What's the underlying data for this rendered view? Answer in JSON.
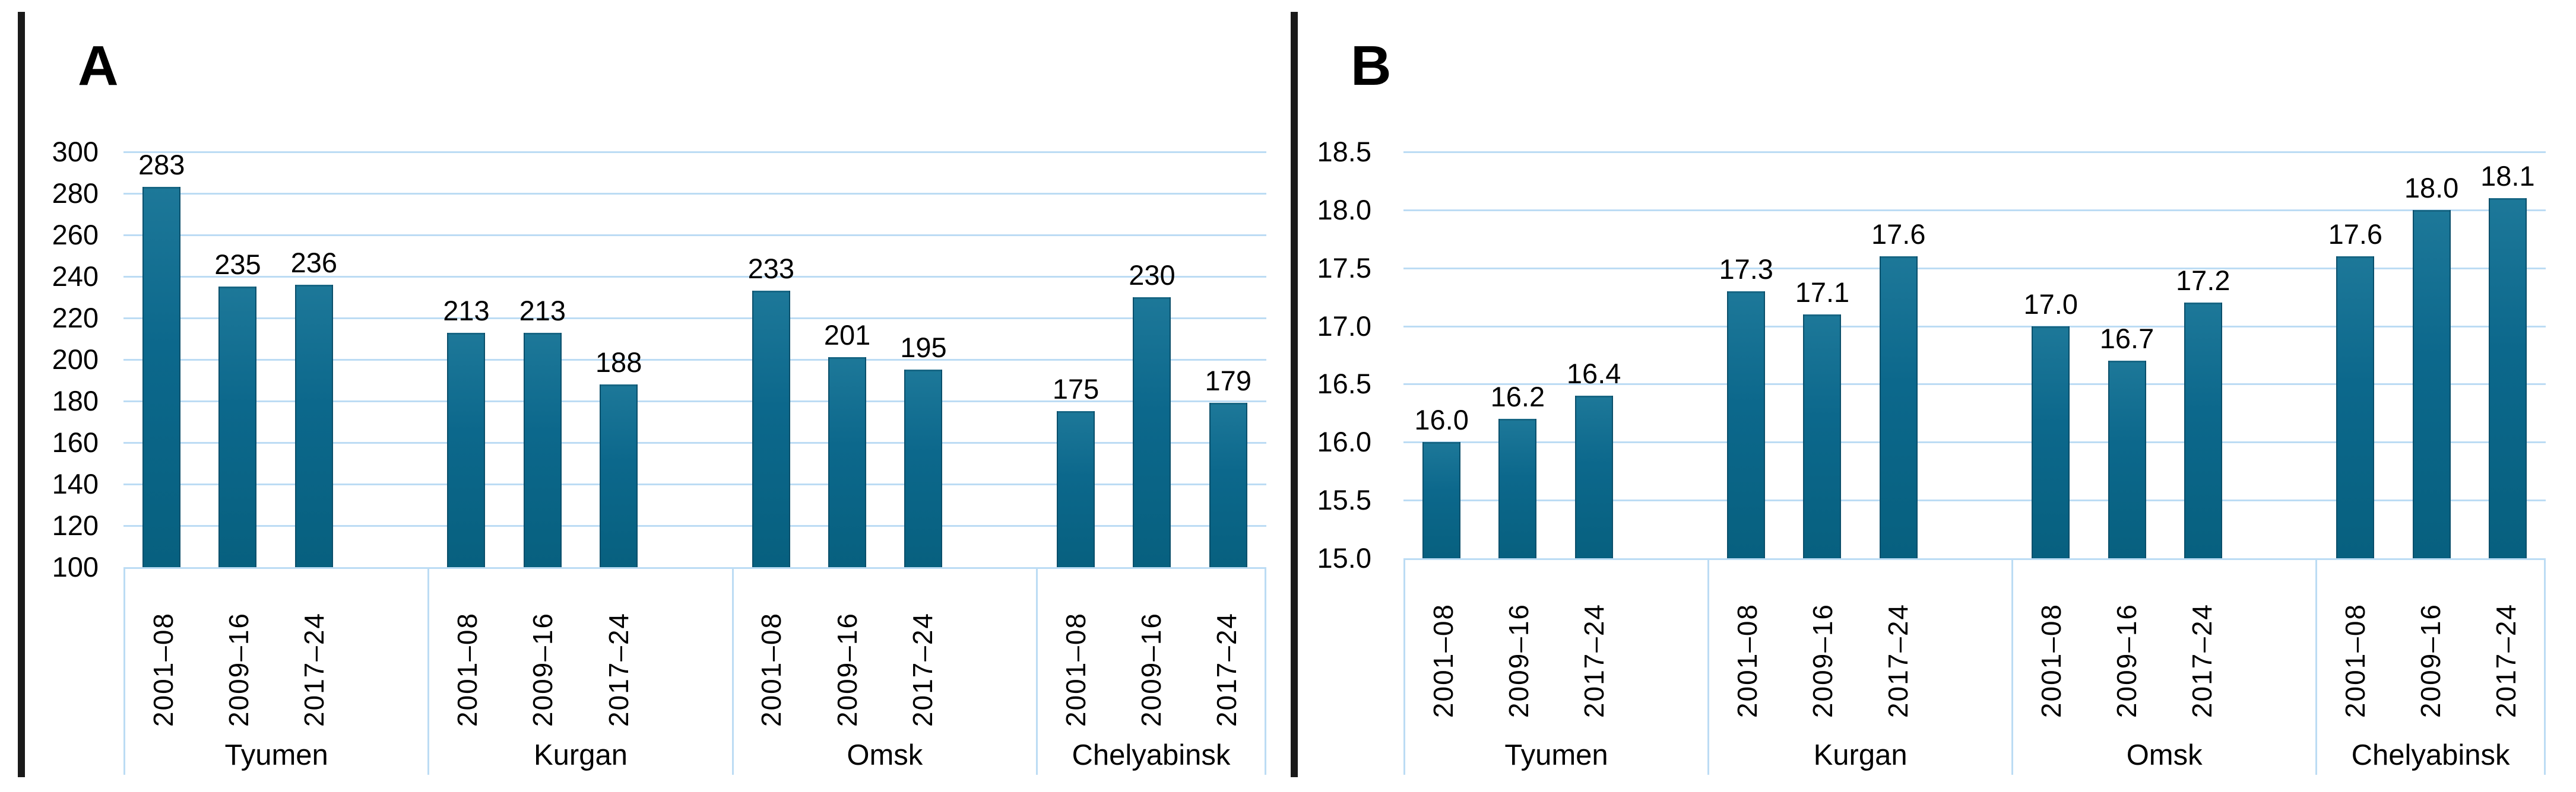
{
  "figure": {
    "background": "#ffffff",
    "panel_border_color": "#1a1a1a",
    "grid_color": "#bcdcf4",
    "bar_color_top": "#1d7899",
    "bar_color_mid": "#0c688c",
    "bar_color_bottom": "#07607f",
    "bar_edge_color": "#0a4f6b",
    "text_color": "#000000"
  },
  "chart_data": [
    {
      "panel_label": "A",
      "type": "bar",
      "title": "",
      "xlabel": "",
      "ylabel": "",
      "ylim": [
        100,
        300
      ],
      "y_tick_step": 20,
      "y_tick_labels": [
        "300",
        "280",
        "260",
        "240",
        "220",
        "200",
        "180",
        "160",
        "140",
        "120",
        "100"
      ],
      "grid": true,
      "legend": false,
      "periods": [
        "2001–08",
        "2009–16",
        "2017–24"
      ],
      "groups": [
        {
          "name": "Tyumen",
          "values": [
            283,
            235,
            236
          ],
          "value_labels": [
            "283",
            "235",
            "236"
          ]
        },
        {
          "name": "Kurgan",
          "values": [
            213,
            213,
            188
          ],
          "value_labels": [
            "213",
            "213",
            "188"
          ]
        },
        {
          "name": "Omsk",
          "values": [
            233,
            201,
            195
          ],
          "value_labels": [
            "233",
            "201",
            "195"
          ]
        },
        {
          "name": "Chelyabinsk",
          "values": [
            175,
            230,
            179
          ],
          "value_labels": [
            "175",
            "230",
            "179"
          ]
        }
      ]
    },
    {
      "panel_label": "B",
      "type": "bar",
      "title": "",
      "xlabel": "",
      "ylabel": "",
      "ylim": [
        15.0,
        18.5
      ],
      "y_tick_step": 0.5,
      "y_tick_labels": [
        "18.5",
        "18.0",
        "17.5",
        "17.0",
        "16.5",
        "16.0",
        "15.5",
        "15.0"
      ],
      "grid": true,
      "legend": false,
      "periods": [
        "2001–08",
        "2009–16",
        "2017–24"
      ],
      "groups": [
        {
          "name": "Tyumen",
          "values": [
            16.0,
            16.2,
            16.4
          ],
          "value_labels": [
            "16.0",
            "16.2",
            "16.4"
          ]
        },
        {
          "name": "Kurgan",
          "values": [
            17.3,
            17.1,
            17.6
          ],
          "value_labels": [
            "17.3",
            "17.1",
            "17.6"
          ]
        },
        {
          "name": "Omsk",
          "values": [
            17.0,
            16.7,
            17.2
          ],
          "value_labels": [
            "17.0",
            "16.7",
            "17.2"
          ]
        },
        {
          "name": "Chelyabinsk",
          "values": [
            17.6,
            18.0,
            18.1
          ],
          "value_labels": [
            "17.6",
            "18.0",
            "18.1"
          ]
        }
      ]
    }
  ]
}
